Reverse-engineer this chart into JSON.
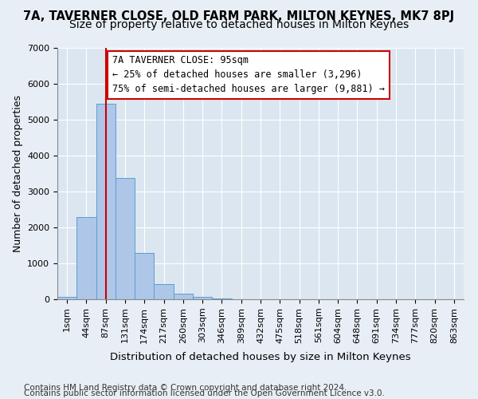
{
  "title_line1": "7A, TAVERNER CLOSE, OLD FARM PARK, MILTON KEYNES, MK7 8PJ",
  "title_line2": "Size of property relative to detached houses in Milton Keynes",
  "xlabel": "Distribution of detached houses by size in Milton Keynes",
  "ylabel": "Number of detached properties",
  "footnote1": "Contains HM Land Registry data © Crown copyright and database right 2024.",
  "footnote2": "Contains public sector information licensed under the Open Government Licence v3.0.",
  "bin_labels": [
    "1sqm",
    "44sqm",
    "87sqm",
    "131sqm",
    "174sqm",
    "217sqm",
    "260sqm",
    "303sqm",
    "346sqm",
    "389sqm",
    "432sqm",
    "475sqm",
    "518sqm",
    "561sqm",
    "604sqm",
    "648sqm",
    "691sqm",
    "734sqm",
    "777sqm",
    "820sqm",
    "863sqm"
  ],
  "bar_heights": [
    60,
    2280,
    5450,
    3380,
    1300,
    420,
    160,
    60,
    20,
    5,
    2,
    1,
    0,
    0,
    0,
    0,
    0,
    0,
    0,
    0,
    0
  ],
  "bar_color": "#aec6e8",
  "bar_edge_color": "#5a9fd4",
  "annotation_box_text": "7A TAVERNER CLOSE: 95sqm\n← 25% of detached houses are smaller (3,296)\n75% of semi-detached houses are larger (9,881) →",
  "vline_x": 2.0,
  "vline_color": "#cc0000",
  "ylim": [
    0,
    7000
  ],
  "yticks": [
    0,
    1000,
    2000,
    3000,
    4000,
    5000,
    6000,
    7000
  ],
  "bg_color": "#e8eef5",
  "plot_bg_color": "#dce6f0",
  "title1_fontsize": 10.5,
  "title2_fontsize": 10,
  "xlabel_fontsize": 9.5,
  "ylabel_fontsize": 9,
  "tick_fontsize": 8,
  "annot_fontsize": 8.5,
  "footnote_fontsize": 7.5
}
